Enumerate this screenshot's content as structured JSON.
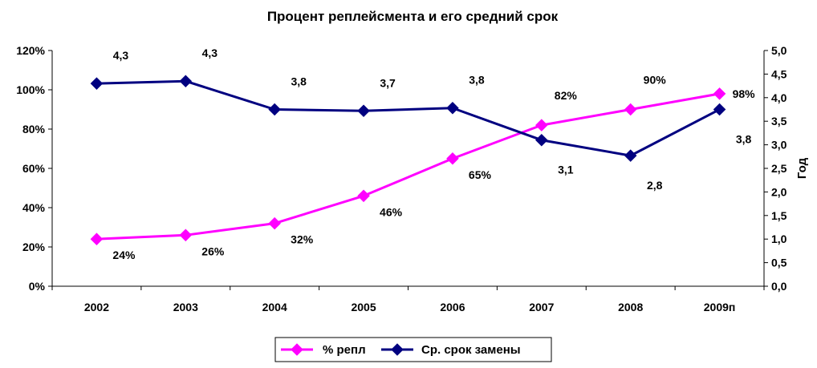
{
  "chart_data": {
    "type": "line",
    "title": "Процент реплейсмента и его средний срок",
    "categories": [
      "2002",
      "2003",
      "2004",
      "2005",
      "2006",
      "2007",
      "2008",
      "2009п"
    ],
    "y_left": {
      "ylim": [
        0,
        120
      ],
      "ticks": [
        "0%",
        "20%",
        "40%",
        "60%",
        "80%",
        "100%",
        "120%"
      ],
      "tick_values": [
        0,
        20,
        40,
        60,
        80,
        100,
        120
      ]
    },
    "y_right": {
      "label": "Год",
      "ylim": [
        0,
        5
      ],
      "ticks": [
        "0,0",
        "0,5",
        "1,0",
        "1,5",
        "2,0",
        "2,5",
        "3,0",
        "3,5",
        "4,0",
        "4,5",
        "5,0"
      ],
      "tick_values": [
        0,
        0.5,
        1,
        1.5,
        2,
        2.5,
        3,
        3.5,
        4,
        4.5,
        5
      ]
    },
    "series": [
      {
        "name": "% репл",
        "axis": "left",
        "color": "#FF00FF",
        "values": [
          24,
          26,
          32,
          46,
          65,
          82,
          90,
          98
        ],
        "labels": [
          "24%",
          "26%",
          "32%",
          "46%",
          "65%",
          "82%",
          "90%",
          "98%"
        ]
      },
      {
        "name": "Ср. срок замены",
        "axis": "right",
        "color": "#000080",
        "values": [
          4.3,
          4.35,
          3.75,
          3.72,
          3.78,
          3.1,
          2.77,
          3.75
        ],
        "labels": [
          "4,3",
          "4,3",
          "3,8",
          "3,7",
          "3,8",
          "3,1",
          "2,8",
          "3,8"
        ]
      }
    ],
    "grid": false,
    "legend": "bottom"
  }
}
